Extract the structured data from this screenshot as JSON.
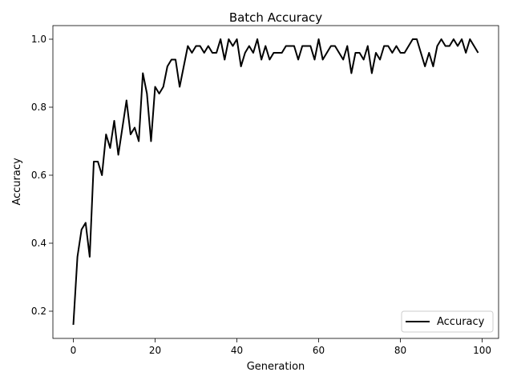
{
  "chart_data": {
    "type": "line",
    "title": "Batch Accuracy",
    "xlabel": "Generation",
    "ylabel": "Accuracy",
    "xlim": [
      -5,
      104
    ],
    "ylim": [
      0.12,
      1.04
    ],
    "xticks": [
      0,
      20,
      40,
      60,
      80,
      100
    ],
    "yticks": [
      0.2,
      0.4,
      0.6,
      0.8,
      1.0
    ],
    "xtick_labels": [
      "0",
      "20",
      "40",
      "60",
      "80",
      "100"
    ],
    "ytick_labels": [
      "0.2",
      "0.4",
      "0.6",
      "0.8",
      "1.0"
    ],
    "grid": false,
    "legend_position": "lower-right",
    "series": [
      {
        "name": "Accuracy",
        "color": "#000000",
        "x": [
          0,
          1,
          2,
          3,
          4,
          5,
          6,
          7,
          8,
          9,
          10,
          11,
          12,
          13,
          14,
          15,
          16,
          17,
          18,
          19,
          20,
          21,
          22,
          23,
          24,
          25,
          26,
          27,
          28,
          29,
          30,
          31,
          32,
          33,
          34,
          35,
          36,
          37,
          38,
          39,
          40,
          41,
          42,
          43,
          44,
          45,
          46,
          47,
          48,
          49,
          50,
          51,
          52,
          53,
          54,
          55,
          56,
          57,
          58,
          59,
          60,
          61,
          62,
          63,
          64,
          65,
          66,
          67,
          68,
          69,
          70,
          71,
          72,
          73,
          74,
          75,
          76,
          77,
          78,
          79,
          80,
          81,
          82,
          83,
          84,
          85,
          86,
          87,
          88,
          89,
          90,
          91,
          92,
          93,
          94,
          95,
          96,
          97,
          98,
          99
        ],
        "values": [
          0.16,
          0.36,
          0.44,
          0.46,
          0.36,
          0.64,
          0.64,
          0.6,
          0.72,
          0.68,
          0.76,
          0.66,
          0.74,
          0.82,
          0.72,
          0.74,
          0.7,
          0.9,
          0.84,
          0.7,
          0.86,
          0.84,
          0.86,
          0.92,
          0.94,
          0.94,
          0.86,
          0.92,
          0.98,
          0.96,
          0.98,
          0.98,
          0.96,
          0.98,
          0.96,
          0.96,
          1.0,
          0.94,
          1.0,
          0.98,
          1.0,
          0.92,
          0.96,
          0.98,
          0.96,
          1.0,
          0.94,
          0.98,
          0.94,
          0.96,
          0.96,
          0.96,
          0.98,
          0.98,
          0.98,
          0.94,
          0.98,
          0.98,
          0.98,
          0.94,
          1.0,
          0.94,
          0.96,
          0.98,
          0.98,
          0.96,
          0.94,
          0.98,
          0.9,
          0.96,
          0.96,
          0.94,
          0.98,
          0.9,
          0.96,
          0.94,
          0.98,
          0.98,
          0.96,
          0.98,
          0.96,
          0.96,
          0.98,
          1.0,
          1.0,
          0.96,
          0.92,
          0.96,
          0.92,
          0.98,
          1.0,
          0.98,
          0.98,
          1.0,
          0.98,
          1.0,
          0.96,
          1.0,
          0.98,
          0.96
        ]
      }
    ]
  }
}
